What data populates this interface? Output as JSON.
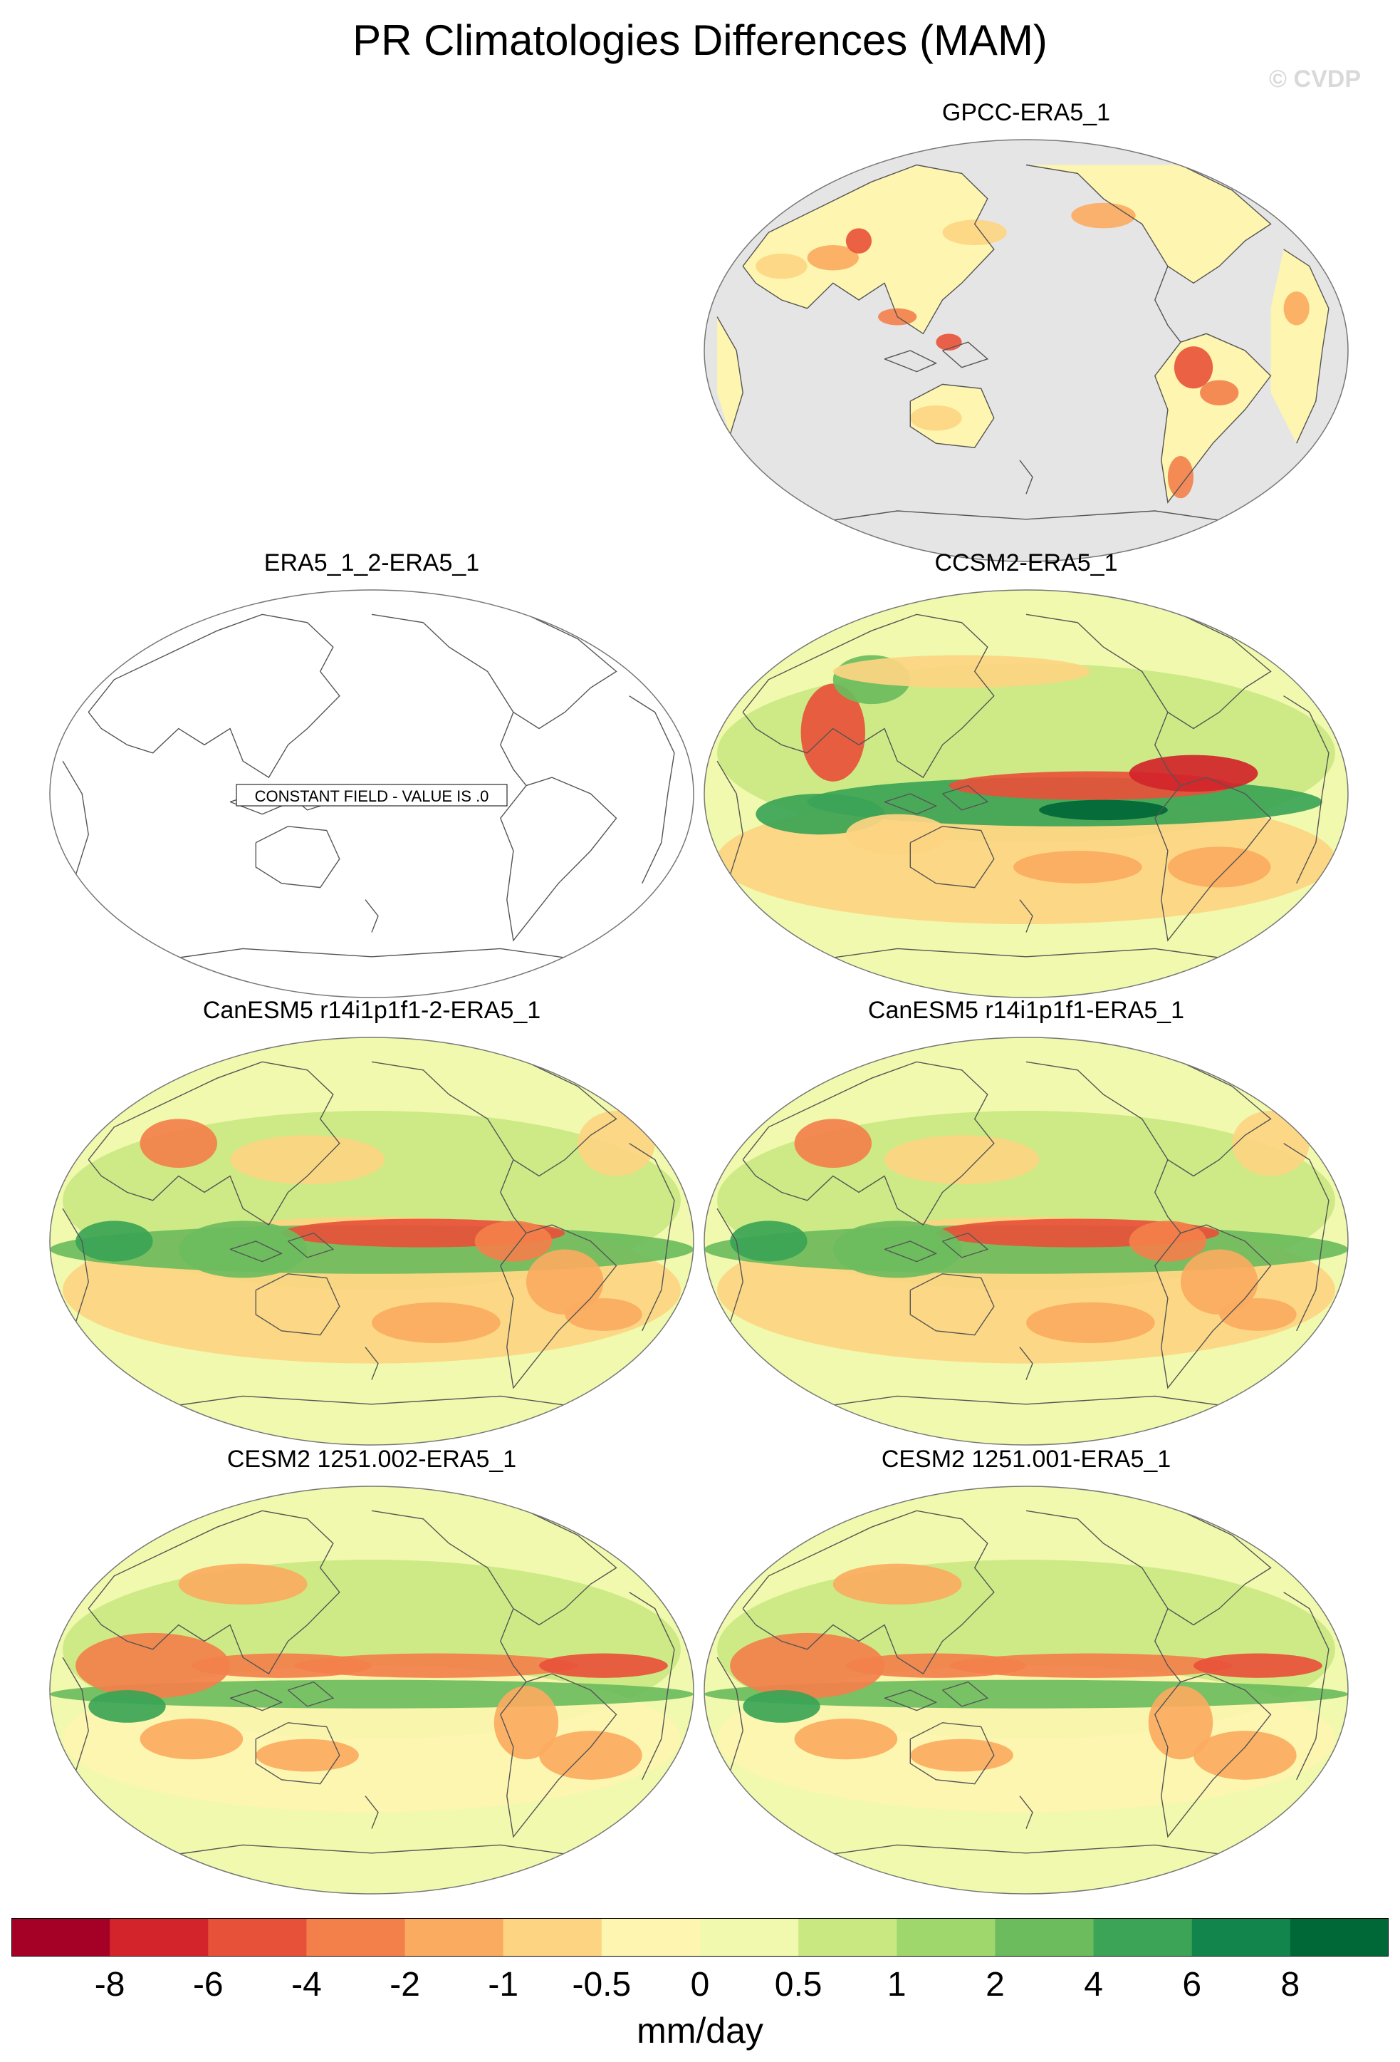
{
  "figure": {
    "title": "PR Climatologies Differences (MAM)",
    "copyright": "© CVDP"
  },
  "panels": [
    {
      "id": "gpcc",
      "title": "GPCC-ERA5_1",
      "style": "obs-land-only"
    },
    {
      "id": "era5-2",
      "title": "ERA5_1_2-ERA5_1",
      "style": "constant",
      "constant_label": "CONSTANT FIELD - VALUE IS .0"
    },
    {
      "id": "ccsm2",
      "title": "CCSM2-ERA5_1",
      "style": "model-strong"
    },
    {
      "id": "canesm5-2",
      "title": "CanESM5 r14i1p1f1-2-ERA5_1",
      "style": "model"
    },
    {
      "id": "canesm5",
      "title": "CanESM5 r14i1p1f1-ERA5_1",
      "style": "model"
    },
    {
      "id": "cesm2-002",
      "title": "CESM2 1251.002-ERA5_1",
      "style": "model-moderate"
    },
    {
      "id": "cesm2-001",
      "title": "CESM2 1251.001-ERA5_1",
      "style": "model-moderate"
    }
  ],
  "colorbar": {
    "units": "mm/day",
    "tick_labels": [
      "-8",
      "-6",
      "-4",
      "-2",
      "-1",
      "-0.5",
      "0",
      "0.5",
      "1",
      "2",
      "4",
      "6",
      "8"
    ],
    "colors": [
      "#a50026",
      "#d3242b",
      "#e85139",
      "#f3804b",
      "#fbab5f",
      "#fdd582",
      "#fdf5b0",
      "#f0f9ad",
      "#cae882",
      "#9fd76c",
      "#6cbc5e",
      "#3ba456",
      "#12854c",
      "#006837"
    ]
  },
  "map_colors": {
    "land_gray": "#e5e5e5",
    "coast": "#555555",
    "background": "#f9f0a8"
  }
}
